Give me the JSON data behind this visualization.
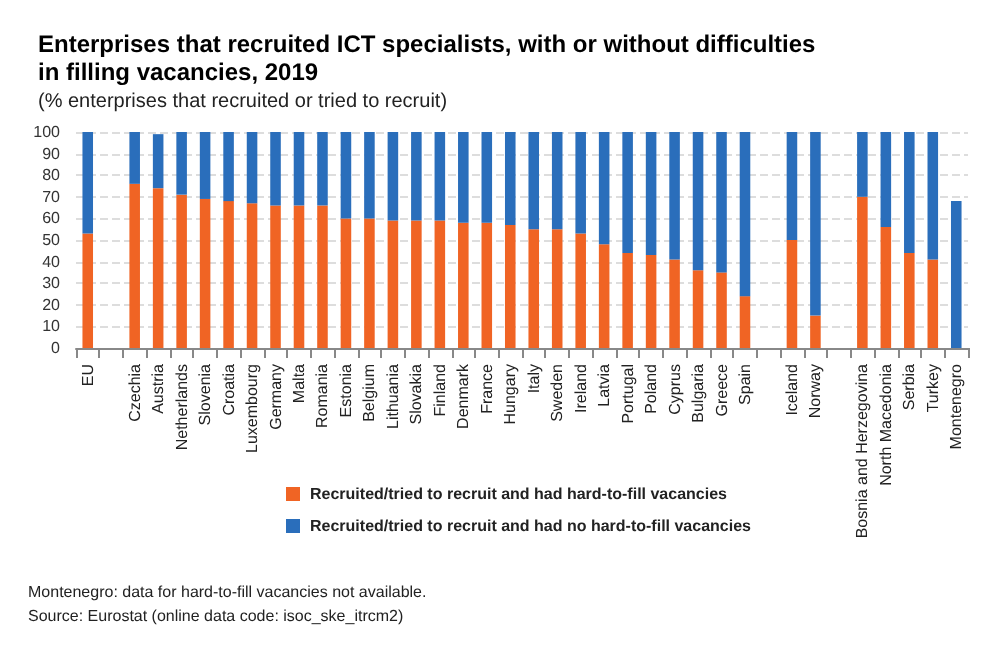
{
  "chart_data": {
    "type": "bar",
    "stacked": true,
    "title": "Enterprises that recruited ICT specialists, with or without difficulties\nin filling vacancies, 2019",
    "subtitle": "(% enterprises that recruited or tried to recruit)",
    "categories": [
      "EU",
      null,
      "Czechia",
      "Austria",
      "Netherlands",
      "Slovenia",
      "Croatia",
      "Luxembourg",
      "Germany",
      "Malta",
      "Romania",
      "Estonia",
      "Belgium",
      "Lithuania",
      "Slovakia",
      "Finland",
      "Denmark",
      "France",
      "Hungary",
      "Italy",
      "Sweden",
      "Ireland",
      "Latvia",
      "Portugal",
      "Poland",
      "Cyprus",
      "Bulgaria",
      "Greece",
      "Spain",
      null,
      "Iceland",
      "Norway",
      null,
      "Bosnia and Herzegovina",
      "North Macedonia",
      "Serbia",
      "Turkey",
      "Montenegro"
    ],
    "series": [
      {
        "name": "Recruited/tried to recruit and had hard-to-fill vacancies",
        "color": "#f06424",
        "values": [
          53,
          null,
          76,
          74,
          71,
          69,
          68,
          67,
          66,
          66,
          66,
          60,
          60,
          59,
          59,
          59,
          58,
          58,
          57,
          55,
          55,
          53,
          48,
          44,
          43,
          41,
          36,
          35,
          24,
          null,
          50,
          15,
          null,
          70,
          56,
          44,
          41,
          null
        ]
      },
      {
        "name": "Recruited/tried to recruit and had no hard-to-fill vacancies",
        "color": "#2a6ebb",
        "values": [
          47,
          null,
          24,
          25,
          29,
          31,
          32,
          33,
          34,
          34,
          34,
          40,
          40,
          41,
          41,
          41,
          42,
          42,
          43,
          45,
          45,
          47,
          52,
          56,
          57,
          59,
          64,
          65,
          76,
          null,
          50,
          85,
          null,
          30,
          44,
          56,
          59,
          68
        ]
      }
    ],
    "ylim": [
      0,
      100
    ],
    "yticks": [
      0,
      10,
      20,
      30,
      40,
      50,
      60,
      70,
      80,
      90,
      100
    ],
    "grid": "y",
    "legend": "bottom",
    "annotations": [
      "Montenegro: data for hard-to-fill vacancies not available.",
      "Source: Eurostat (online data code: isoc_ske_itrcm2)"
    ]
  }
}
